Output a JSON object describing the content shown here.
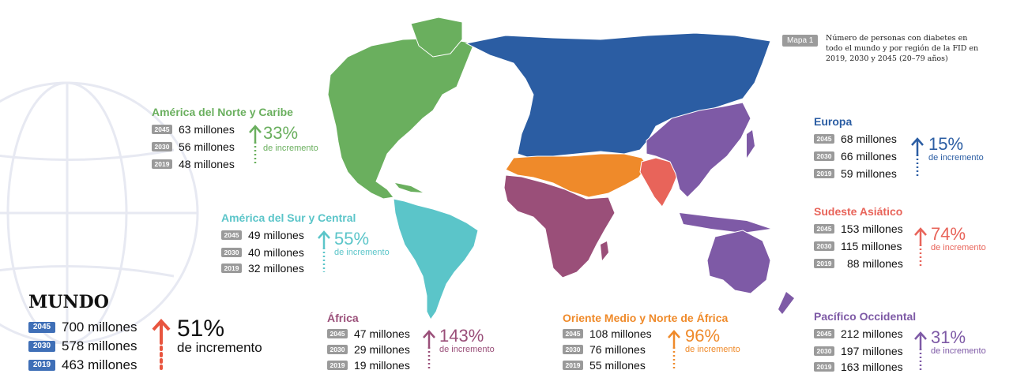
{
  "legend": {
    "tag": "Mapa 1",
    "text": "Número de personas con diabetes en todo el mundo y por región de la FID en 2019, 2030 y 2045 (20–79 años)"
  },
  "colors": {
    "north_america": "#6aaf5e",
    "south_america": "#5bc5c9",
    "africa": "#9a4f79",
    "mena": "#ef8a2a",
    "europe": "#2b5da3",
    "sea": "#e8645a",
    "western_pacific": "#7e5aa6",
    "world": "#e8553f",
    "year_badge": "#9a9a9a",
    "world_badge": "#3f6fb7"
  },
  "regions": {
    "north_america": {
      "name": "América del Norte y Caribe",
      "rows": [
        {
          "year": "2045",
          "value": "63 millones"
        },
        {
          "year": "2030",
          "value": "56 millones"
        },
        {
          "year": "2019",
          "value": "48 millones"
        }
      ],
      "pct": "33%",
      "increase": "de incremento"
    },
    "south_america": {
      "name": "América del Sur y Central",
      "rows": [
        {
          "year": "2045",
          "value": "49 millones"
        },
        {
          "year": "2030",
          "value": "40 millones"
        },
        {
          "year": "2019",
          "value": "32 millones"
        }
      ],
      "pct": "55%",
      "increase": "de incremento"
    },
    "africa": {
      "name": "África",
      "rows": [
        {
          "year": "2045",
          "value": "47 millones"
        },
        {
          "year": "2030",
          "value": "29 millones"
        },
        {
          "year": "2019",
          "value": "19 millones"
        }
      ],
      "pct": "143%",
      "increase": "de incremento"
    },
    "mena": {
      "name": "Oriente Medio y Norte de África",
      "rows": [
        {
          "year": "2045",
          "value": "108 millones"
        },
        {
          "year": "2030",
          "value": "76 millones"
        },
        {
          "year": "2019",
          "value": "55 millones"
        }
      ],
      "pct": "96%",
      "increase": "de incremento"
    },
    "europe": {
      "name": "Europa",
      "rows": [
        {
          "year": "2045",
          "value": "68 millones"
        },
        {
          "year": "2030",
          "value": "66 millones"
        },
        {
          "year": "2019",
          "value": "59 millones"
        }
      ],
      "pct": "15%",
      "increase": "de incremento"
    },
    "sea": {
      "name": "Sudeste Asiático",
      "rows": [
        {
          "year": "2045",
          "value": "153 millones"
        },
        {
          "year": "2030",
          "value": "115 millones"
        },
        {
          "year": "2019",
          "value": "88 millones"
        }
      ],
      "pct": "74%",
      "increase": "de incremento"
    },
    "western_pacific": {
      "name": "Pacífico Occidental",
      "rows": [
        {
          "year": "2045",
          "value": "212 millones"
        },
        {
          "year": "2030",
          "value": "197 millones"
        },
        {
          "year": "2019",
          "value": "163 millones"
        }
      ],
      "pct": "31%",
      "increase": "de incremento"
    }
  },
  "world": {
    "name": "MUNDO",
    "rows": [
      {
        "year": "2045",
        "value": "700 millones"
      },
      {
        "year": "2030",
        "value": "578 millones"
      },
      {
        "year": "2019",
        "value": "463 millones"
      }
    ],
    "pct": "51%",
    "increase": "de incremento"
  }
}
